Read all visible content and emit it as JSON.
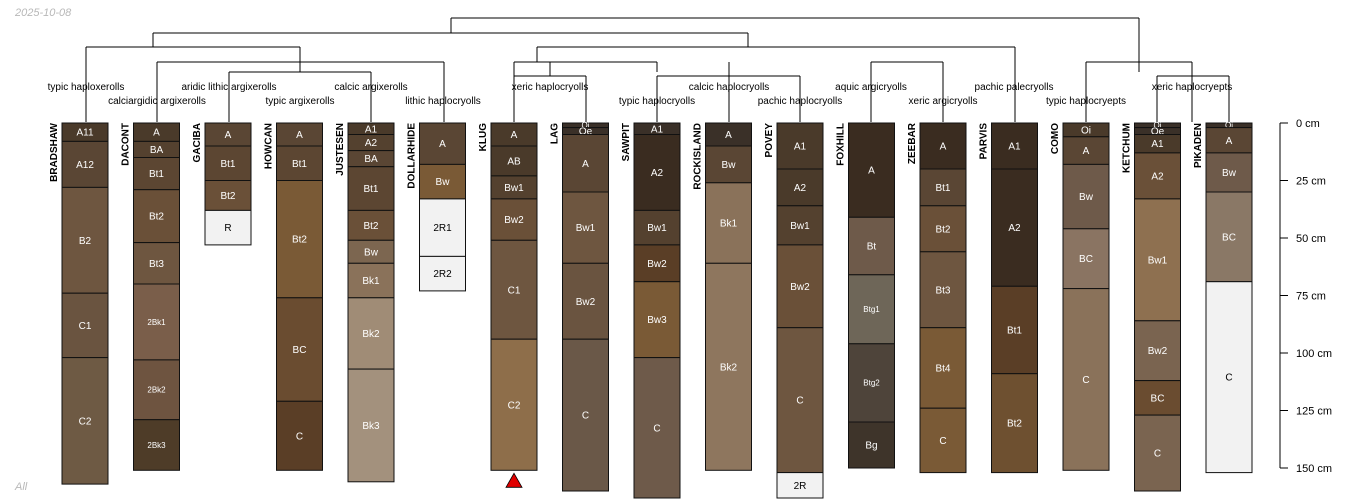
{
  "header": {
    "date": "2025-10-08"
  },
  "footer": {
    "label": "All"
  },
  "axis": {
    "ticks": [
      {
        "depth": 0,
        "label": "0 cm"
      },
      {
        "depth": 25,
        "label": "25 cm"
      },
      {
        "depth": 50,
        "label": "50 cm"
      },
      {
        "depth": 75,
        "label": "75 cm"
      },
      {
        "depth": 100,
        "label": "100 cm"
      },
      {
        "depth": 125,
        "label": "125 cm"
      },
      {
        "depth": 150,
        "label": "150 cm"
      }
    ]
  },
  "taxa": [
    "typic haploxerolls",
    "calciargidic argixerolls",
    "aridic lithic argixerolls",
    "typic argixerolls",
    "calcic argixerolls",
    "lithic haplocryolls",
    "xeric haplocryolls",
    "typic haplocryolls",
    "calcic haplocryolls",
    "pachic haplocryolls",
    "aquic argicryolls",
    "xeric argicryolls",
    "pachic palecryolls",
    "typic haplocryepts",
    "xeric haplocryepts"
  ],
  "profiles": [
    {
      "name": "BRADSHAW",
      "horizons": [
        {
          "name": "A11",
          "top": 0,
          "bottom": 8,
          "color": "#4a3a2a"
        },
        {
          "name": "A12",
          "top": 8,
          "bottom": 28,
          "color": "#5a4634"
        },
        {
          "name": "B2",
          "top": 28,
          "bottom": 74,
          "color": "#6e5640"
        },
        {
          "name": "C1",
          "top": 74,
          "bottom": 102,
          "color": "#6a5440"
        },
        {
          "name": "C2",
          "top": 102,
          "bottom": 157,
          "color": "#6e5a44"
        }
      ]
    },
    {
      "name": "DACONT",
      "horizons": [
        {
          "name": "A",
          "top": 0,
          "bottom": 8,
          "color": "#4a3a2a"
        },
        {
          "name": "BA",
          "top": 8,
          "bottom": 15,
          "color": "#54412f"
        },
        {
          "name": "Bt1",
          "top": 15,
          "bottom": 29,
          "color": "#5c4632"
        },
        {
          "name": "Bt2",
          "top": 29,
          "bottom": 52,
          "color": "#6a5038"
        },
        {
          "name": "Bt3",
          "top": 52,
          "bottom": 70,
          "color": "#6e5640"
        },
        {
          "name": "2Bk1",
          "top": 70,
          "bottom": 103,
          "color": "#7a5e4a"
        },
        {
          "name": "2Bk2",
          "top": 103,
          "bottom": 129,
          "color": "#6e5440"
        },
        {
          "name": "2Bk3",
          "top": 129,
          "bottom": 151,
          "color": "#4e3c28"
        }
      ]
    },
    {
      "name": "GACIBA",
      "horizons": [
        {
          "name": "A",
          "top": 0,
          "bottom": 10,
          "color": "#5a4634"
        },
        {
          "name": "Bt1",
          "top": 10,
          "bottom": 25,
          "color": "#5c4632"
        },
        {
          "name": "Bt2",
          "top": 25,
          "bottom": 38,
          "color": "#6a5038"
        },
        {
          "name": "R",
          "top": 38,
          "bottom": 53,
          "color": "#f2f2f2"
        }
      ]
    },
    {
      "name": "HOWCAN",
      "horizons": [
        {
          "name": "A",
          "top": 0,
          "bottom": 10,
          "color": "#5a4634"
        },
        {
          "name": "Bt1",
          "top": 10,
          "bottom": 25,
          "color": "#5c4632"
        },
        {
          "name": "Bt2",
          "top": 25,
          "bottom": 76,
          "color": "#7a5a36"
        },
        {
          "name": "BC",
          "top": 76,
          "bottom": 121,
          "color": "#6a4c30"
        },
        {
          "name": "C",
          "top": 121,
          "bottom": 151,
          "color": "#5a3e26"
        }
      ]
    },
    {
      "name": "JUSTESEN",
      "horizons": [
        {
          "name": "A1",
          "top": 0,
          "bottom": 5,
          "color": "#4a3a2a"
        },
        {
          "name": "A2",
          "top": 5,
          "bottom": 12,
          "color": "#54412f"
        },
        {
          "name": "BA",
          "top": 12,
          "bottom": 19,
          "color": "#5a4634"
        },
        {
          "name": "Bt1",
          "top": 19,
          "bottom": 38,
          "color": "#5c4632"
        },
        {
          "name": "Bt2",
          "top": 38,
          "bottom": 51,
          "color": "#6a5038"
        },
        {
          "name": "Bw",
          "top": 51,
          "bottom": 61,
          "color": "#7c6650"
        },
        {
          "name": "Bk1",
          "top": 61,
          "bottom": 76,
          "color": "#8a725a"
        },
        {
          "name": "Bk2",
          "top": 76,
          "bottom": 107,
          "color": "#a08c76"
        },
        {
          "name": "Bk3",
          "top": 107,
          "bottom": 156,
          "color": "#a3917d"
        }
      ]
    },
    {
      "name": "DOLLARHIDE",
      "horizons": [
        {
          "name": "A",
          "top": 0,
          "bottom": 18,
          "color": "#5a4634"
        },
        {
          "name": "Bw",
          "top": 18,
          "bottom": 33,
          "color": "#7a5a36"
        },
        {
          "name": "2R1",
          "top": 33,
          "bottom": 58,
          "color": "#f2f2f2"
        },
        {
          "name": "2R2",
          "top": 58,
          "bottom": 73,
          "color": "#f2f2f2"
        }
      ]
    },
    {
      "name": "KLUG",
      "horizons": [
        {
          "name": "A",
          "top": 0,
          "bottom": 10,
          "color": "#4a3a2a"
        },
        {
          "name": "AB",
          "top": 10,
          "bottom": 23,
          "color": "#4a3a2a"
        },
        {
          "name": "Bw1",
          "top": 23,
          "bottom": 33,
          "color": "#54412f"
        },
        {
          "name": "Bw2",
          "top": 33,
          "bottom": 51,
          "color": "#6a5038"
        },
        {
          "name": "C1",
          "top": 51,
          "bottom": 94,
          "color": "#6e5640"
        },
        {
          "name": "C2",
          "top": 94,
          "bottom": 151,
          "color": "#8e6e4a"
        }
      ]
    },
    {
      "name": "LAG",
      "horizons": [
        {
          "name": "Oi",
          "top": 0,
          "bottom": 2,
          "color": "#3a3028"
        },
        {
          "name": "Oe",
          "top": 2,
          "bottom": 5,
          "color": "#3a3028"
        },
        {
          "name": "A",
          "top": 5,
          "bottom": 30,
          "color": "#5a4634"
        },
        {
          "name": "Bw1",
          "top": 30,
          "bottom": 61,
          "color": "#6e5640"
        },
        {
          "name": "Bw2",
          "top": 61,
          "bottom": 94,
          "color": "#6a5440"
        },
        {
          "name": "C",
          "top": 94,
          "bottom": 160,
          "color": "#6a5848"
        }
      ]
    },
    {
      "name": "SAWPIT",
      "horizons": [
        {
          "name": "A1",
          "top": 0,
          "bottom": 5,
          "color": "#3a3028"
        },
        {
          "name": "A2",
          "top": 5,
          "bottom": 38,
          "color": "#3a2c20"
        },
        {
          "name": "Bw1",
          "top": 38,
          "bottom": 53,
          "color": "#54412f"
        },
        {
          "name": "Bw2",
          "top": 53,
          "bottom": 69,
          "color": "#5a3e26"
        },
        {
          "name": "Bw3",
          "top": 69,
          "bottom": 102,
          "color": "#7a5a36"
        },
        {
          "name": "C",
          "top": 102,
          "bottom": 165,
          "color": "#6e5a4a"
        }
      ]
    },
    {
      "name": "ROCKISLAND",
      "horizons": [
        {
          "name": "A",
          "top": 0,
          "bottom": 10,
          "color": "#3a3028"
        },
        {
          "name": "Bw",
          "top": 10,
          "bottom": 26,
          "color": "#5a4634"
        },
        {
          "name": "Bk1",
          "top": 26,
          "bottom": 61,
          "color": "#8a725a"
        },
        {
          "name": "Bk2",
          "top": 61,
          "bottom": 151,
          "color": "#8e765e"
        }
      ]
    },
    {
      "name": "POVEY",
      "horizons": [
        {
          "name": "A1",
          "top": 0,
          "bottom": 20,
          "color": "#4a3a2a"
        },
        {
          "name": "A2",
          "top": 20,
          "bottom": 36,
          "color": "#4a3a2a"
        },
        {
          "name": "Bw1",
          "top": 36,
          "bottom": 53,
          "color": "#54412f"
        },
        {
          "name": "Bw2",
          "top": 53,
          "bottom": 89,
          "color": "#6a5038"
        },
        {
          "name": "C",
          "top": 89,
          "bottom": 152,
          "color": "#6e5640"
        },
        {
          "name": "2R",
          "top": 152,
          "bottom": 165,
          "color": "#f2f2f2"
        }
      ]
    },
    {
      "name": "FOXHILL",
      "horizons": [
        {
          "name": "A",
          "top": 0,
          "bottom": 41,
          "color": "#3a2c20"
        },
        {
          "name": "Bt",
          "top": 41,
          "bottom": 66,
          "color": "#6e5a4a"
        },
        {
          "name": "Btg1",
          "top": 66,
          "bottom": 96,
          "color": "#6e6658"
        },
        {
          "name": "Btg2",
          "top": 96,
          "bottom": 130,
          "color": "#4e443a"
        },
        {
          "name": "Bg",
          "top": 130,
          "bottom": 150,
          "color": "#3e342a"
        }
      ]
    },
    {
      "name": "ZEEBAR",
      "horizons": [
        {
          "name": "A",
          "top": 0,
          "bottom": 20,
          "color": "#3a2c20"
        },
        {
          "name": "Bt1",
          "top": 20,
          "bottom": 36,
          "color": "#5a4634"
        },
        {
          "name": "Bt2",
          "top": 36,
          "bottom": 56,
          "color": "#6a5038"
        },
        {
          "name": "Bt3",
          "top": 56,
          "bottom": 89,
          "color": "#6e5640"
        },
        {
          "name": "Bt4",
          "top": 89,
          "bottom": 124,
          "color": "#7a5a36"
        },
        {
          "name": "C",
          "top": 124,
          "bottom": 152,
          "color": "#7a5a36"
        }
      ]
    },
    {
      "name": "PARVIS",
      "horizons": [
        {
          "name": "A1",
          "top": 0,
          "bottom": 20,
          "color": "#3a2c20"
        },
        {
          "name": "A2",
          "top": 20,
          "bottom": 71,
          "color": "#3a2c20"
        },
        {
          "name": "Bt1",
          "top": 71,
          "bottom": 109,
          "color": "#5a3e26"
        },
        {
          "name": "Bt2",
          "top": 109,
          "bottom": 152,
          "color": "#6e5030"
        }
      ]
    },
    {
      "name": "COMO",
      "horizons": [
        {
          "name": "Oi",
          "top": 0,
          "bottom": 6,
          "color": "#4a3a2a"
        },
        {
          "name": "A",
          "top": 6,
          "bottom": 18,
          "color": "#5a4634"
        },
        {
          "name": "Bw",
          "top": 18,
          "bottom": 46,
          "color": "#6e5a4a"
        },
        {
          "name": "BC",
          "top": 46,
          "bottom": 72,
          "color": "#8a7462"
        },
        {
          "name": "C",
          "top": 72,
          "bottom": 151,
          "color": "#8a725a"
        }
      ]
    },
    {
      "name": "KETCHUM",
      "horizons": [
        {
          "name": "Oi",
          "top": 0,
          "bottom": 2,
          "color": "#3a3028"
        },
        {
          "name": "Oe",
          "top": 2,
          "bottom": 5,
          "color": "#3a3028"
        },
        {
          "name": "A1",
          "top": 5,
          "bottom": 13,
          "color": "#4a3a2a"
        },
        {
          "name": "A2",
          "top": 13,
          "bottom": 33,
          "color": "#6a5038"
        },
        {
          "name": "Bw1",
          "top": 33,
          "bottom": 86,
          "color": "#8e7050"
        },
        {
          "name": "Bw2",
          "top": 86,
          "bottom": 112,
          "color": "#7a6450"
        },
        {
          "name": "BC",
          "top": 112,
          "bottom": 127,
          "color": "#6a4c30"
        },
        {
          "name": "C",
          "top": 127,
          "bottom": 160,
          "color": "#7a6450"
        }
      ]
    },
    {
      "name": "PIKADEN",
      "horizons": [
        {
          "name": "Oi",
          "top": 0,
          "bottom": 2,
          "color": "#3a3028"
        },
        {
          "name": "A",
          "top": 2,
          "bottom": 13,
          "color": "#5a4634"
        },
        {
          "name": "Bw",
          "top": 13,
          "bottom": 30,
          "color": "#6e5a4a"
        },
        {
          "name": "BC",
          "top": 30,
          "bottom": 69,
          "color": "#8a7866"
        },
        {
          "name": "C",
          "top": 69,
          "bottom": 152,
          "color": "#f2f2f2"
        }
      ]
    }
  ],
  "markers": [
    {
      "profile": "KLUG",
      "symbol": "triangle",
      "color": "#e00000"
    }
  ]
}
